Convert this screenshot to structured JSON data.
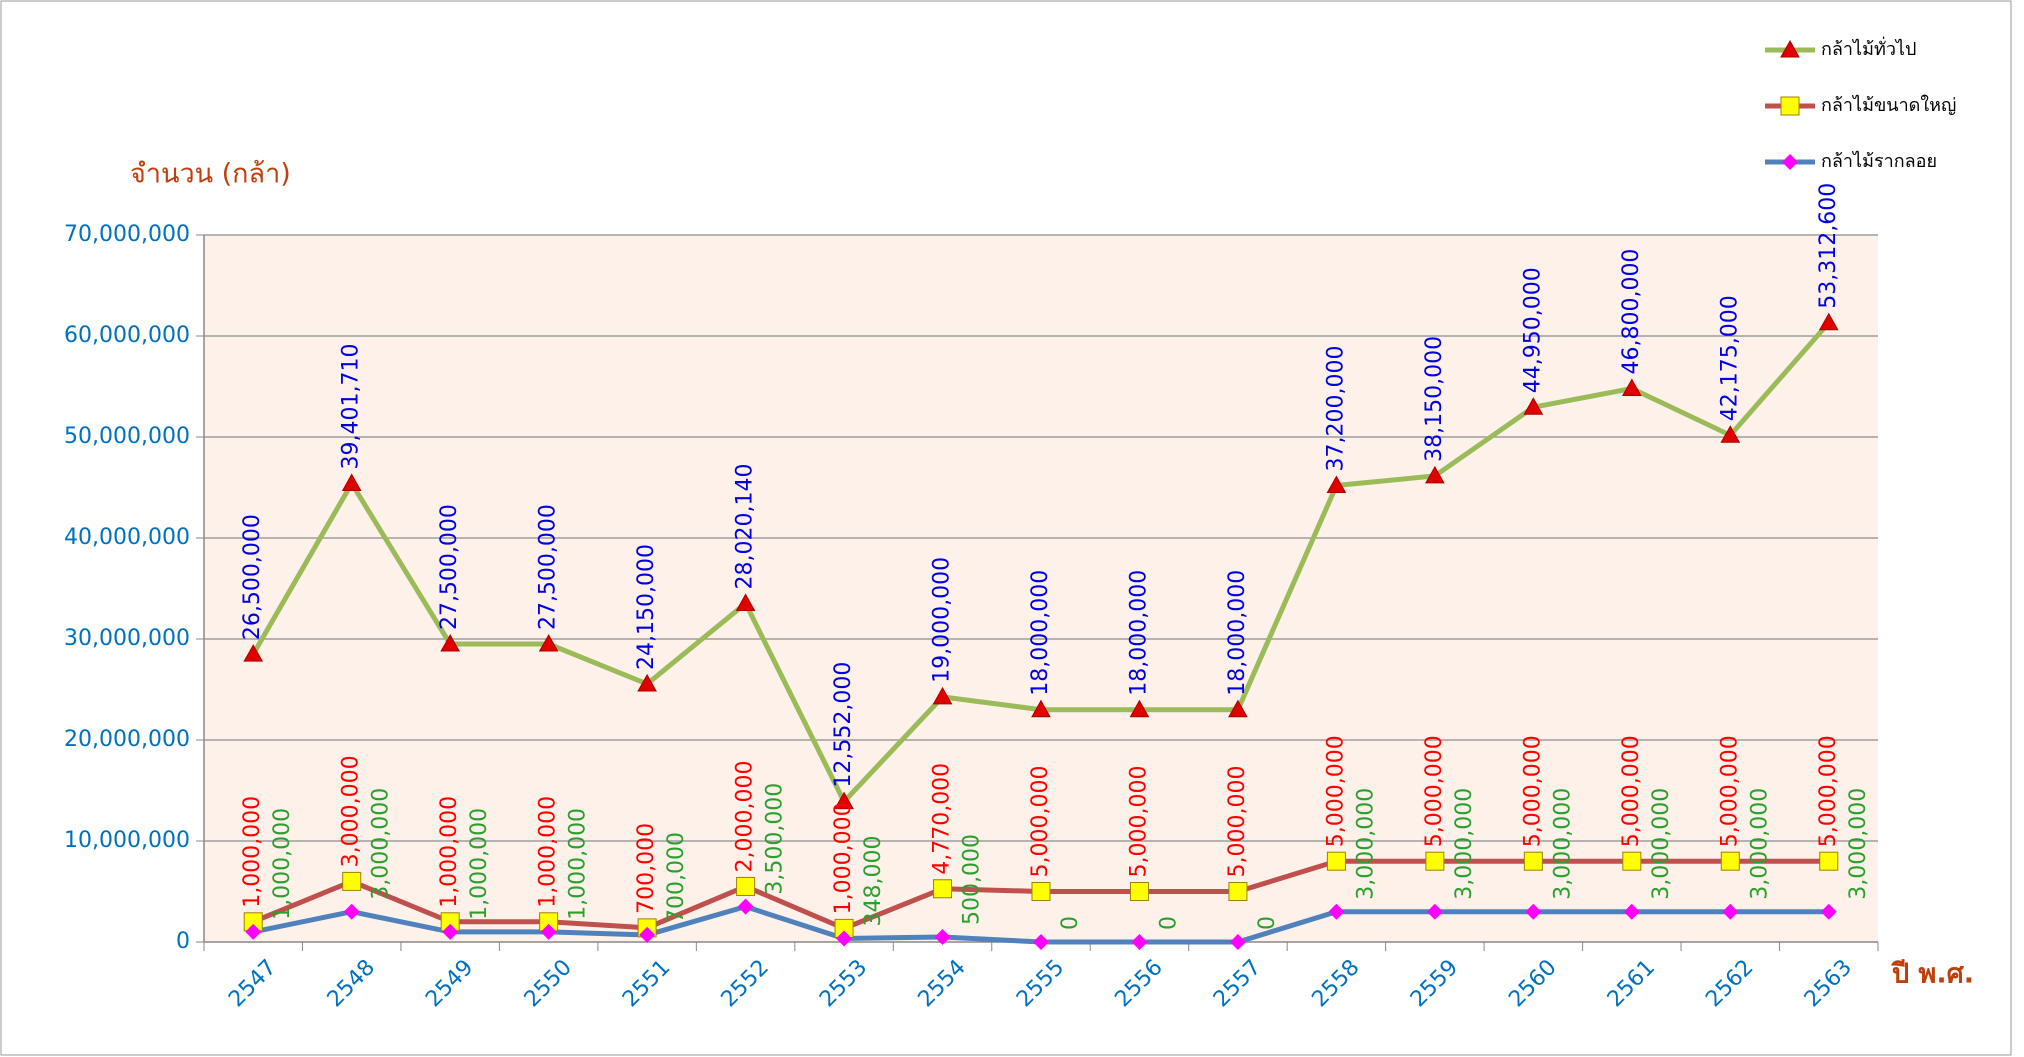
{
  "chart_data": {
    "type": "line",
    "stacked": true,
    "y_label": "จำนวน (กล้า)",
    "x_label": "ปี พ.ศ.",
    "categories": [
      "2547",
      "2548",
      "2549",
      "2550",
      "2551",
      "2552",
      "2553",
      "2554",
      "2555",
      "2556",
      "2557",
      "2558",
      "2559",
      "2560",
      "2561",
      "2562",
      "2563"
    ],
    "series": [
      {
        "name": "กล้าไม้ทั่วไป",
        "color": "#9bbb59",
        "marker": "triangle",
        "marker_color": "#e00000",
        "label_color": "#0000e0",
        "values": [
          26500000,
          39401710,
          27500000,
          27500000,
          24150000,
          28020140,
          12552000,
          19000000,
          18000000,
          18000000,
          18000000,
          37200000,
          38150000,
          44950000,
          46800000,
          42175000,
          53312600
        ],
        "value_labels": [
          "26,500,000",
          "39,401,710",
          "27,500,000",
          "27,500,000",
          "24,150,000",
          "28,020,140",
          "12,552,000",
          "19,000,000",
          "18,000,000",
          "18,000,000",
          "18,000,000",
          "37,200,000",
          "38,150,000",
          "44,950,000",
          "46,800,000",
          "42,175,000",
          "53,312,600"
        ]
      },
      {
        "name": "กล้าไม้ขนาดใหญ่",
        "color": "#c0504d",
        "marker": "square",
        "marker_color": "#ffff00",
        "label_color": "#ff0000",
        "values": [
          1000000,
          3000000,
          1000000,
          1000000,
          700000,
          2000000,
          1000000,
          4770000,
          5000000,
          5000000,
          5000000,
          5000000,
          5000000,
          5000000,
          5000000,
          5000000,
          5000000
        ],
        "value_labels": [
          "1,000,000",
          "3,000,000",
          "1,000,000",
          "1,000,000",
          "700,000",
          "2,000,000",
          "1,000,000",
          "4,770,000",
          "5,000,000",
          "5,000,000",
          "5,000,000",
          "5,000,000",
          "5,000,000",
          "5,000,000",
          "5,000,000",
          "5,000,000",
          "5,000,000"
        ]
      },
      {
        "name": "กล้าไม้รากลอย",
        "color": "#4f81bd",
        "marker": "diamond",
        "marker_color": "#ff00ff",
        "label_color": "#2ca02c",
        "values": [
          1000000,
          3000000,
          1000000,
          1000000,
          700000,
          3500000,
          348000,
          500000,
          0,
          0,
          0,
          3000000,
          3000000,
          3000000,
          3000000,
          3000000,
          3000000
        ],
        "value_labels": [
          "1,000,000",
          "3,000,000",
          "1,000,000",
          "1,000,000",
          "700,000",
          "3,500,000",
          "348,000",
          "500,000",
          "0",
          "0",
          "0",
          "3,000,000",
          "3,000,000",
          "3,000,000",
          "3,000,000",
          "3,000,000",
          "3,000,000"
        ]
      }
    ],
    "ylim": [
      0,
      70000000
    ],
    "yticks": [
      0,
      {
        "value": 10000000,
        "label": "10,000,000"
      },
      {
        "value": 20000000,
        "label": "20,000,000"
      },
      {
        "value": 30000000,
        "label": "30,000,000"
      },
      {
        "value": 40000000,
        "label": "40,000,000"
      },
      {
        "value": 50000000,
        "label": "50,000,000"
      },
      {
        "value": 60000000,
        "label": "60,000,000"
      },
      {
        "value": 70000000,
        "label": "70,000,000"
      }
    ],
    "grid": true,
    "legend": "top-right"
  }
}
